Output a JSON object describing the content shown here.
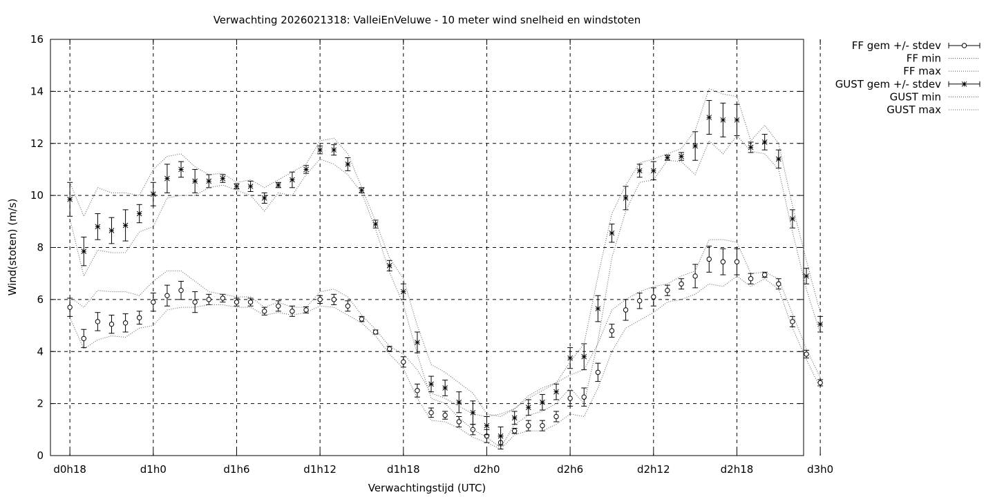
{
  "chart_data": {
    "type": "line",
    "title": "Verwachting 2026021318: ValleiEnVeluwe - 10 meter wind snelheid en windstoten",
    "xlabel": "Verwachtingstijd (UTC)",
    "ylabel": "Wind(stoten) (m/s)",
    "ylim": [
      0,
      16
    ],
    "xlim": [
      -0.7,
      26.4
    ],
    "yticks": [
      0,
      2,
      4,
      6,
      8,
      10,
      12,
      14,
      16
    ],
    "xticks": [
      {
        "x": 0,
        "label": "d0h18"
      },
      {
        "x": 3,
        "label": "d1h0"
      },
      {
        "x": 6,
        "label": "d1h6"
      },
      {
        "x": 9,
        "label": "d1h12"
      },
      {
        "x": 12,
        "label": "d1h18"
      },
      {
        "x": 15,
        "label": "d2h0"
      },
      {
        "x": 18,
        "label": "d2h6"
      },
      {
        "x": 21,
        "label": "d2h12"
      },
      {
        "x": 24,
        "label": "d2h18"
      },
      {
        "x": 27,
        "label": "d3h0"
      }
    ],
    "x_unit": "index in 2-hour steps from d0h18",
    "grid": true,
    "legend_position": "outside-right",
    "series": [
      {
        "name": "FF gem +/- stdev",
        "style": "errorbar-circle",
        "x": [
          0,
          0.5,
          1,
          1.5,
          2,
          2.5,
          3,
          3.5,
          4,
          4.5,
          5,
          5.5,
          6,
          6.5,
          7,
          7.5,
          8,
          8.5,
          9,
          9.5,
          10,
          10.5,
          11,
          11.5,
          12,
          12.5,
          13,
          13.5,
          14,
          14.5,
          15,
          15.5,
          16,
          16.5,
          17,
          17.5,
          18,
          18.5,
          19,
          19.5,
          20,
          20.5,
          21,
          21.5,
          22,
          22.5,
          23,
          23.5,
          24,
          24.5,
          25,
          25.5,
          26,
          26.5,
          27
        ],
        "mean": [
          5.7,
          4.5,
          5.15,
          5.05,
          5.1,
          5.3,
          5.9,
          6.15,
          6.35,
          5.9,
          6.0,
          6.05,
          5.9,
          5.9,
          5.55,
          5.75,
          5.55,
          5.6,
          6.0,
          6.0,
          5.75,
          5.25,
          4.75,
          4.1,
          3.6,
          2.5,
          1.65,
          1.55,
          1.3,
          1.0,
          0.75,
          0.5,
          0.95,
          1.15,
          1.15,
          1.5,
          2.2,
          2.25,
          3.2,
          4.8,
          5.6,
          5.95,
          6.1,
          6.35,
          6.6,
          6.9,
          7.55,
          7.45,
          7.45,
          6.8,
          6.95,
          6.6,
          5.15,
          3.9,
          2.8
        ],
        "stdev": [
          0.35,
          0.35,
          0.35,
          0.35,
          0.35,
          0.25,
          0.35,
          0.4,
          0.35,
          0.4,
          0.2,
          0.15,
          0.15,
          0.15,
          0.15,
          0.2,
          0.2,
          0.12,
          0.15,
          0.2,
          0.2,
          0.1,
          0.08,
          0.1,
          0.2,
          0.25,
          0.18,
          0.15,
          0.2,
          0.2,
          0.25,
          0.25,
          0.1,
          0.2,
          0.2,
          0.2,
          0.3,
          0.35,
          0.35,
          0.25,
          0.4,
          0.3,
          0.35,
          0.2,
          0.2,
          0.45,
          0.5,
          0.5,
          0.5,
          0.2,
          0.1,
          0.2,
          0.2,
          0.15,
          0.12
        ]
      },
      {
        "name": "FF min",
        "style": "dotted",
        "x": [
          0,
          0.5,
          1,
          1.5,
          2,
          2.5,
          3,
          3.5,
          4,
          4.5,
          5,
          5.5,
          6,
          6.5,
          7,
          7.5,
          8,
          8.5,
          9,
          9.5,
          10,
          10.5,
          11,
          11.5,
          12,
          12.5,
          13,
          13.5,
          14,
          14.5,
          15,
          15.5,
          16,
          16.5,
          17,
          17.5,
          18,
          18.5,
          19,
          19.5,
          20,
          20.5,
          21,
          21.5,
          22,
          22.5,
          23,
          23.5,
          24,
          24.5,
          25,
          25.5,
          26,
          26.5,
          27
        ],
        "values": [
          5.3,
          4.1,
          4.45,
          4.6,
          4.55,
          4.9,
          5.0,
          5.6,
          5.7,
          5.7,
          5.8,
          5.8,
          5.7,
          5.7,
          5.4,
          5.5,
          5.4,
          5.5,
          5.75,
          5.7,
          5.4,
          5.1,
          4.6,
          3.9,
          3.35,
          2.2,
          1.35,
          1.3,
          1.05,
          0.7,
          0.5,
          0.25,
          0.8,
          0.95,
          0.95,
          1.2,
          1.6,
          1.5,
          2.6,
          4.0,
          4.9,
          5.2,
          5.5,
          5.9,
          6.0,
          6.2,
          6.6,
          6.5,
          6.9,
          6.5,
          6.8,
          6.4,
          4.9,
          3.7,
          2.6
        ]
      },
      {
        "name": "FF max",
        "style": "dotted",
        "x": [
          0,
          0.5,
          1,
          1.5,
          2,
          2.5,
          3,
          3.5,
          4,
          4.5,
          5,
          5.5,
          6,
          6.5,
          7,
          7.5,
          8,
          8.5,
          9,
          9.5,
          10,
          10.5,
          11,
          11.5,
          12,
          12.5,
          13,
          13.5,
          14,
          14.5,
          15,
          15.5,
          16,
          16.5,
          17,
          17.5,
          18,
          18.5,
          19,
          19.5,
          20,
          20.5,
          21,
          21.5,
          22,
          22.5,
          23,
          23.5,
          24,
          24.5,
          25,
          25.5,
          26,
          26.5,
          27
        ],
        "values": [
          6.1,
          5.7,
          6.35,
          6.3,
          6.3,
          6.15,
          6.7,
          7.1,
          7.1,
          6.7,
          6.3,
          6.2,
          6.1,
          6.1,
          5.7,
          5.9,
          5.7,
          5.7,
          6.3,
          6.4,
          6.1,
          5.4,
          4.85,
          4.2,
          3.9,
          3.3,
          2.4,
          2.2,
          1.9,
          1.6,
          1.5,
          1.6,
          1.8,
          2.2,
          2.5,
          2.8,
          3.1,
          3.3,
          4.3,
          5.6,
          6.0,
          6.3,
          6.5,
          6.6,
          6.9,
          7.1,
          8.3,
          8.3,
          8.2,
          7.0,
          7.05,
          6.8,
          5.45,
          4.1,
          3.0
        ]
      },
      {
        "name": "GUST gem +/- stdev",
        "style": "errorbar-star",
        "x": [
          0,
          0.5,
          1,
          1.5,
          2,
          2.5,
          3,
          3.5,
          4,
          4.5,
          5,
          5.5,
          6,
          6.5,
          7,
          7.5,
          8,
          8.5,
          9,
          9.5,
          10,
          10.5,
          11,
          11.5,
          12,
          12.5,
          13,
          13.5,
          14,
          14.5,
          15,
          15.5,
          16,
          16.5,
          17,
          17.5,
          18,
          18.5,
          19,
          19.5,
          20,
          20.5,
          21,
          21.5,
          22,
          22.5,
          23,
          23.5,
          24,
          24.5,
          25,
          25.5,
          26,
          26.5,
          27
        ],
        "mean": [
          9.85,
          7.85,
          8.8,
          8.65,
          8.85,
          9.3,
          10.05,
          10.65,
          11.0,
          10.55,
          10.55,
          10.65,
          10.35,
          10.35,
          9.9,
          10.4,
          10.6,
          11.0,
          11.75,
          11.75,
          11.2,
          10.2,
          8.9,
          7.3,
          6.3,
          4.35,
          2.75,
          2.6,
          2.05,
          1.65,
          1.15,
          0.75,
          1.45,
          1.85,
          2.05,
          2.45,
          3.75,
          3.8,
          5.65,
          8.55,
          9.9,
          10.95,
          10.95,
          11.45,
          11.5,
          11.9,
          13.0,
          12.9,
          12.9,
          11.85,
          12.05,
          11.4,
          9.1,
          6.9,
          5.05
        ],
        "stdev": [
          0.65,
          0.55,
          0.5,
          0.5,
          0.6,
          0.35,
          0.45,
          0.55,
          0.3,
          0.45,
          0.25,
          0.15,
          0.1,
          0.2,
          0.2,
          0.1,
          0.3,
          0.15,
          0.15,
          0.2,
          0.25,
          0.1,
          0.15,
          0.2,
          0.3,
          0.4,
          0.3,
          0.3,
          0.4,
          0.45,
          0.35,
          0.35,
          0.25,
          0.3,
          0.3,
          0.3,
          0.4,
          0.5,
          0.5,
          0.35,
          0.45,
          0.25,
          0.35,
          0.1,
          0.15,
          0.55,
          0.65,
          0.65,
          0.6,
          0.2,
          0.3,
          0.35,
          0.35,
          0.3,
          0.3
        ]
      },
      {
        "name": "GUST min",
        "style": "dotted",
        "x": [
          0,
          0.5,
          1,
          1.5,
          2,
          2.5,
          3,
          3.5,
          4,
          4.5,
          5,
          5.5,
          6,
          6.5,
          7,
          7.5,
          8,
          8.5,
          9,
          9.5,
          10,
          10.5,
          11,
          11.5,
          12,
          12.5,
          13,
          13.5,
          14,
          14.5,
          15,
          15.5,
          16,
          16.5,
          17,
          17.5,
          18,
          18.5,
          19,
          19.5,
          20,
          20.5,
          21,
          21.5,
          22,
          22.5,
          23,
          23.5,
          24,
          24.5,
          25,
          25.5,
          26,
          26.5,
          27
        ],
        "values": [
          9.1,
          6.9,
          7.9,
          7.8,
          7.8,
          8.6,
          8.8,
          9.9,
          10.0,
          10.0,
          10.3,
          10.4,
          10.2,
          10.0,
          9.4,
          10.1,
          10.0,
          10.8,
          11.4,
          11.2,
          10.8,
          10.1,
          8.7,
          7.05,
          5.8,
          3.9,
          2.2,
          2.0,
          1.45,
          1.0,
          0.7,
          0.3,
          1.2,
          1.55,
          1.7,
          2.0,
          2.6,
          2.0,
          4.4,
          7.6,
          9.4,
          10.5,
          10.6,
          11.35,
          11.3,
          10.8,
          12.1,
          11.6,
          12.3,
          11.7,
          11.6,
          11.0,
          8.6,
          6.4,
          4.7
        ]
      },
      {
        "name": "GUST max",
        "style": "dotted",
        "x": [
          0,
          0.5,
          1,
          1.5,
          2,
          2.5,
          3,
          3.5,
          4,
          4.5,
          5,
          5.5,
          6,
          6.5,
          7,
          7.5,
          8,
          8.5,
          9,
          9.5,
          10,
          10.5,
          11,
          11.5,
          12,
          12.5,
          13,
          13.5,
          14,
          14.5,
          15,
          15.5,
          16,
          16.5,
          17,
          17.5,
          18,
          18.5,
          19,
          19.5,
          20,
          20.5,
          21,
          21.5,
          22,
          22.5,
          23,
          23.5,
          24,
          24.5,
          25,
          25.5,
          26,
          26.5,
          27
        ],
        "values": [
          10.5,
          9.2,
          10.3,
          10.1,
          10.1,
          10.0,
          11.0,
          11.5,
          11.6,
          11.1,
          10.8,
          10.85,
          10.5,
          10.6,
          10.3,
          10.6,
          10.9,
          11.2,
          12.1,
          12.2,
          11.6,
          10.3,
          9.0,
          7.6,
          6.8,
          5.0,
          3.5,
          3.2,
          2.8,
          2.4,
          1.6,
          1.5,
          1.8,
          2.3,
          2.6,
          2.8,
          3.6,
          4.3,
          6.9,
          9.3,
          10.4,
          11.25,
          11.4,
          11.6,
          11.8,
          12.5,
          14.1,
          13.9,
          13.8,
          12.1,
          12.7,
          12.0,
          9.6,
          7.5,
          5.5
        ]
      }
    ]
  }
}
